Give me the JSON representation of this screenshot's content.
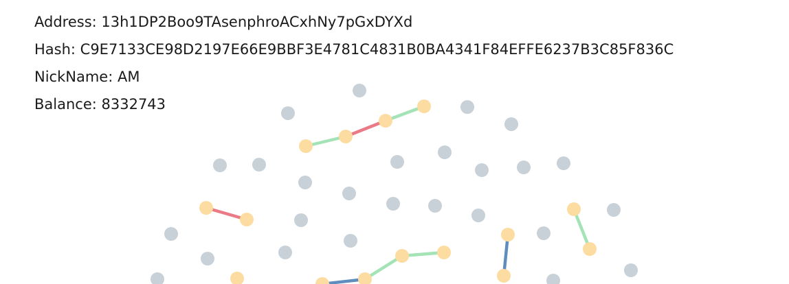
{
  "info": {
    "address": "Address: 13h1DP2Boo9TAsenphroACxhNy7pGxDYXd",
    "hash": "Hash: C9E7133CE98D2197E66E9BBF3E4781C4831B0BA4341F84EFFE6237B3C85F836C",
    "nickname": "NickName: AM",
    "balance": "Balance: 8332743"
  },
  "colors": {
    "idle_node": "#c8d1d8",
    "active_node": "#fddca2",
    "edge_green": "#a3e3b5",
    "edge_red": "#e97a86",
    "edge_blue": "#5f8ebe"
  }
}
